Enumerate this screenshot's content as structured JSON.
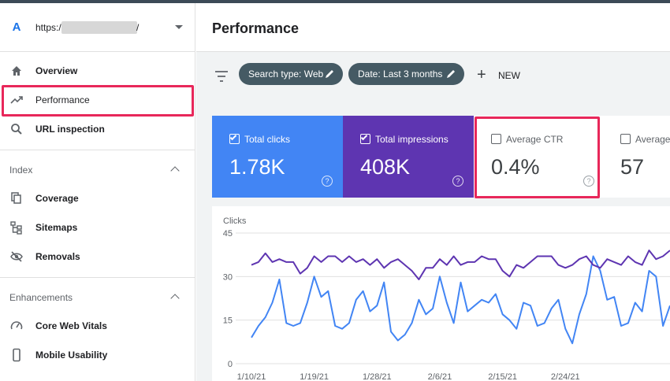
{
  "property": {
    "url_prefix": "https:/",
    "url_suffix": "/",
    "logo": "A"
  },
  "sidebar": {
    "items": [
      {
        "label": "Overview",
        "icon": "home-icon"
      },
      {
        "label": "Performance",
        "icon": "trending-up-icon"
      },
      {
        "label": "URL inspection",
        "icon": "search-icon"
      }
    ],
    "sections": [
      {
        "title": "Index",
        "items": [
          {
            "label": "Coverage",
            "icon": "copy-icon"
          },
          {
            "label": "Sitemaps",
            "icon": "sitemap-icon"
          },
          {
            "label": "Removals",
            "icon": "eye-off-icon"
          }
        ]
      },
      {
        "title": "Enhancements",
        "items": [
          {
            "label": "Core Web Vitals",
            "icon": "speed-icon"
          },
          {
            "label": "Mobile Usability",
            "icon": "phone-icon"
          }
        ]
      }
    ]
  },
  "header": {
    "title": "Performance"
  },
  "filters": {
    "chips": [
      "Search type: Web",
      "Date: Last 3 months"
    ],
    "new_label": "NEW"
  },
  "metrics": [
    {
      "label": "Total clicks",
      "value": "1.78K",
      "checked": true,
      "color": "#4285f4"
    },
    {
      "label": "Total impressions",
      "value": "408K",
      "checked": true,
      "color": "#5e35b1"
    },
    {
      "label": "Average CTR",
      "value": "0.4%",
      "checked": false
    },
    {
      "label": "Average",
      "value": "57",
      "checked": false
    }
  ],
  "chart_data": {
    "type": "line",
    "ylabel": "Clicks",
    "ylim": [
      0,
      45
    ],
    "yticks": [
      "45",
      "30",
      "15",
      "0"
    ],
    "xticks": [
      "1/10/21",
      "1/19/21",
      "1/28/21",
      "2/6/21",
      "2/15/21",
      "2/24/21"
    ],
    "series": [
      {
        "values": [
          9,
          13,
          16,
          21,
          29,
          14,
          13,
          14,
          21,
          30,
          23,
          25,
          13,
          12,
          14,
          22,
          25,
          18,
          20,
          28,
          11,
          8,
          10,
          14,
          22,
          17,
          19,
          30,
          21,
          14,
          28,
          18,
          20,
          22,
          21,
          24,
          17,
          15,
          12,
          21,
          20,
          13,
          14,
          19,
          22,
          12,
          7,
          17,
          24,
          37,
          32,
          22,
          23,
          13,
          14,
          21,
          18,
          32,
          30,
          13,
          20
        ],
        "color": "#4285f4"
      },
      {
        "values": [
          34,
          35,
          38,
          35,
          36,
          35,
          35,
          31,
          33,
          37,
          35,
          37,
          37,
          35,
          37,
          35,
          36,
          34,
          36,
          33,
          35,
          36,
          34,
          32,
          29,
          33,
          33,
          36,
          34,
          37,
          34,
          35,
          35,
          37,
          36,
          36,
          32,
          30,
          34,
          33,
          35,
          37,
          37,
          37,
          34,
          33,
          34,
          36,
          37,
          34,
          33,
          36,
          35,
          34,
          37,
          35,
          34,
          39,
          36,
          37,
          39
        ],
        "color": "#5e35b1"
      }
    ]
  },
  "colors": {
    "accent_red": "#e8275a",
    "chip_bg": "#455a64",
    "clicks": "#4285f4",
    "impressions": "#5e35b1"
  }
}
